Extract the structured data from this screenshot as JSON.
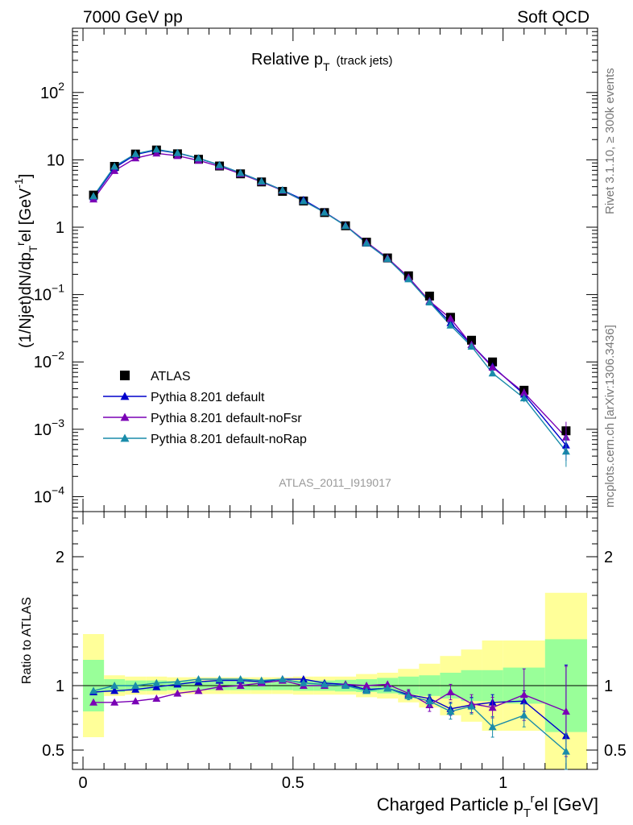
{
  "header": {
    "left": "7000 GeV pp",
    "right": "Soft QCD"
  },
  "side_labels": {
    "rivet": "Rivet 3.1.10, ≥ 300k events",
    "mcplots": "mcplots.cern.ch [arXiv:1306.3436]"
  },
  "chart_data": [
    {
      "type": "line",
      "title": "Relative p",
      "title_sub": "T",
      "title_suffix": "(track jets)",
      "analysis_label": "ATLAS_2011_I919017",
      "ylabel": "(1/Njet)dN/dp",
      "ylabel_sub": "T",
      "ylabel_sup": "r",
      "ylabel_mid": "el [GeV",
      "ylabel_sup2": "-1",
      "ylabel_end": "]",
      "yscale": "log",
      "ylim": [
        6e-05,
        900
      ],
      "xlim": [
        -0.025,
        1.225
      ],
      "yticks": [
        {
          "v": 0.0001,
          "base": "10",
          "exp": "−4"
        },
        {
          "v": 0.001,
          "base": "10",
          "exp": "−3"
        },
        {
          "v": 0.01,
          "base": "10",
          "exp": "−2"
        },
        {
          "v": 0.1,
          "base": "10",
          "exp": "−1"
        },
        {
          "v": 1,
          "base": "1",
          "exp": ""
        },
        {
          "v": 10,
          "base": "10",
          "exp": ""
        },
        {
          "v": 100,
          "base": "10",
          "exp": "2"
        }
      ],
      "legend_position": "bottom-left",
      "x": [
        0.025,
        0.075,
        0.125,
        0.175,
        0.225,
        0.275,
        0.325,
        0.375,
        0.425,
        0.475,
        0.525,
        0.575,
        0.625,
        0.675,
        0.725,
        0.775,
        0.825,
        0.875,
        0.925,
        0.975,
        1.05,
        1.15
      ],
      "series": [
        {
          "name": "ATLAS",
          "color": "#000000",
          "marker": "square",
          "values": [
            3.0,
            8.0,
            12.2,
            14.0,
            12.3,
            10.2,
            8.1,
            6.2,
            4.7,
            3.4,
            2.45,
            1.65,
            1.05,
            0.6,
            0.35,
            0.19,
            0.095,
            0.046,
            0.021,
            0.01,
            0.0038,
            0.00095
          ]
        },
        {
          "name": "Pythia 8.201 default",
          "color": "#0000cc",
          "marker": "triangle",
          "values": [
            2.8,
            7.6,
            12.0,
            14.0,
            12.6,
            10.5,
            8.4,
            6.4,
            4.8,
            3.55,
            2.55,
            1.68,
            1.06,
            0.58,
            0.34,
            0.175,
            0.08,
            0.038,
            0.018,
            0.0086,
            0.0033,
            0.00058
          ]
        },
        {
          "name": "Pythia 8.201 default-noFsr",
          "color": "#7a00b5",
          "marker": "triangle",
          "values": [
            2.6,
            6.9,
            10.6,
            12.5,
            11.5,
            9.8,
            8.0,
            6.2,
            4.7,
            3.5,
            2.45,
            1.67,
            1.06,
            0.6,
            0.35,
            0.18,
            0.08,
            0.044,
            0.018,
            0.0083,
            0.0035,
            0.00076
          ]
        },
        {
          "name": "Pythia 8.201 default-noRap",
          "color": "#1a8caa",
          "marker": "triangle",
          "values": [
            2.9,
            8.0,
            12.3,
            14.3,
            12.7,
            10.6,
            8.4,
            6.4,
            4.8,
            3.55,
            2.45,
            1.66,
            1.05,
            0.58,
            0.34,
            0.17,
            0.077,
            0.035,
            0.017,
            0.0068,
            0.0029,
            0.00047
          ]
        }
      ]
    },
    {
      "type": "line",
      "ylabel": "Ratio to ATLAS",
      "xlabel": "Charged Particle p",
      "xlabel_sub": "T",
      "xlabel_sup": "r",
      "xlabel_end": "el [GeV]",
      "ylim": [
        0.35,
        2.35
      ],
      "xlim": [
        -0.025,
        1.225
      ],
      "yticks": [
        {
          "v": 0.5,
          "label": "0.5"
        },
        {
          "v": 1,
          "label": "1"
        },
        {
          "v": 2,
          "label": "2"
        }
      ],
      "xticks": [
        {
          "v": 0,
          "label": "0"
        },
        {
          "v": 0.5,
          "label": "0.5"
        },
        {
          "v": 1,
          "label": "1"
        }
      ],
      "bands": {
        "edges": [
          0.0,
          0.05,
          0.1,
          0.15,
          0.2,
          0.25,
          0.3,
          0.35,
          0.4,
          0.45,
          0.5,
          0.55,
          0.6,
          0.65,
          0.7,
          0.75,
          0.8,
          0.85,
          0.9,
          0.95,
          1.0,
          1.1,
          1.2
        ],
        "stat_half": [
          0.2,
          0.05,
          0.04,
          0.04,
          0.035,
          0.035,
          0.035,
          0.035,
          0.035,
          0.035,
          0.04,
          0.04,
          0.045,
          0.05,
          0.06,
          0.07,
          0.08,
          0.1,
          0.12,
          0.12,
          0.14,
          0.36
        ],
        "total_half": [
          0.4,
          0.08,
          0.07,
          0.07,
          0.065,
          0.065,
          0.065,
          0.065,
          0.065,
          0.065,
          0.07,
          0.07,
          0.07,
          0.09,
          0.1,
          0.13,
          0.17,
          0.23,
          0.28,
          0.35,
          0.35,
          0.72
        ],
        "stat_color": "#99ff99",
        "total_color": "#ffff99"
      },
      "x": [
        0.025,
        0.075,
        0.125,
        0.175,
        0.225,
        0.275,
        0.325,
        0.375,
        0.425,
        0.475,
        0.525,
        0.575,
        0.625,
        0.675,
        0.725,
        0.775,
        0.825,
        0.875,
        0.925,
        0.975,
        1.05,
        1.15
      ],
      "series": [
        {
          "name": "Pythia 8.201 default",
          "color": "#0000cc",
          "values": [
            0.95,
            0.96,
            0.97,
            0.99,
            1.01,
            1.03,
            1.04,
            1.04,
            1.03,
            1.05,
            1.05,
            1.02,
            1.01,
            0.97,
            0.98,
            0.93,
            0.9,
            0.82,
            0.85,
            0.87,
            0.88,
            0.61
          ],
          "err": [
            0,
            0,
            0,
            0,
            0,
            0,
            0,
            0,
            0,
            0,
            0,
            0,
            0,
            0,
            0,
            0.03,
            0.03,
            0.05,
            0.06,
            0.06,
            0.08,
            0.55
          ]
        },
        {
          "name": "Pythia 8.201 default-noFsr",
          "color": "#7a00b5",
          "values": [
            0.87,
            0.87,
            0.88,
            0.9,
            0.94,
            0.96,
            0.99,
            1.0,
            1.02,
            1.04,
            1.0,
            1.0,
            1.01,
            1.0,
            1.01,
            0.94,
            0.85,
            0.95,
            0.86,
            0.83,
            0.93,
            0.8
          ],
          "err": [
            0,
            0,
            0,
            0,
            0,
            0,
            0,
            0,
            0,
            0,
            0,
            0,
            0,
            0,
            0,
            0.03,
            0.05,
            0.06,
            0.07,
            0.08,
            0.2,
            0.35
          ]
        },
        {
          "name": "Pythia 8.201 default-noRap",
          "color": "#1a8caa",
          "values": [
            0.96,
            1.0,
            1.0,
            1.02,
            1.03,
            1.05,
            1.05,
            1.05,
            1.04,
            1.05,
            1.02,
            1.01,
            1.0,
            0.96,
            0.98,
            0.92,
            0.88,
            0.8,
            0.84,
            0.68,
            0.77,
            0.49
          ],
          "err": [
            0,
            0,
            0,
            0,
            0,
            0,
            0,
            0,
            0,
            0,
            0,
            0,
            0,
            0,
            0,
            0.03,
            0.04,
            0.06,
            0.06,
            0.08,
            0.09,
            0.14
          ]
        }
      ]
    }
  ]
}
